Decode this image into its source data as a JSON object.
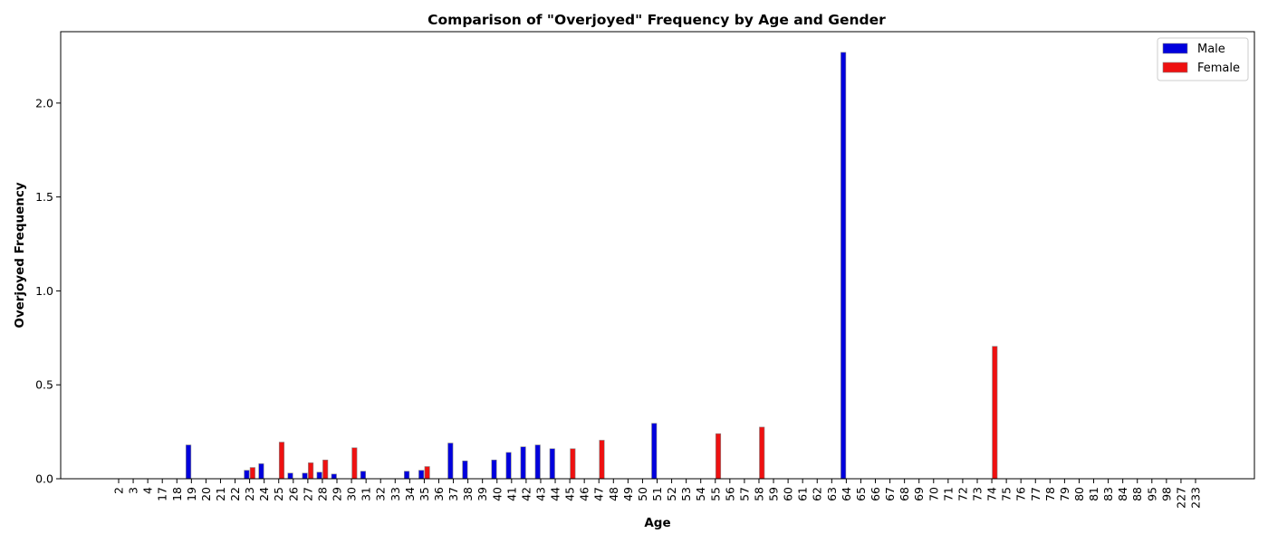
{
  "chart_data": {
    "type": "bar",
    "title": "Comparison of \"Overjoyed\" Frequency by Age and Gender",
    "xlabel": "Age",
    "ylabel": "Overjoyed Frequency",
    "ylim": [
      0,
      2.38
    ],
    "yticks": [
      "0.0",
      "0.5",
      "1.0",
      "1.5",
      "2.0"
    ],
    "legend_position": "top-right",
    "categories": [
      "2",
      "3",
      "4",
      "17",
      "18",
      "19",
      "20",
      "21",
      "22",
      "23",
      "24",
      "25",
      "26",
      "27",
      "28",
      "29",
      "30",
      "31",
      "32",
      "33",
      "34",
      "35",
      "36",
      "37",
      "38",
      "39",
      "40",
      "41",
      "42",
      "43",
      "44",
      "45",
      "46",
      "47",
      "48",
      "49",
      "50",
      "51",
      "52",
      "53",
      "54",
      "55",
      "56",
      "57",
      "58",
      "59",
      "60",
      "61",
      "62",
      "63",
      "64",
      "65",
      "66",
      "67",
      "68",
      "69",
      "70",
      "71",
      "72",
      "73",
      "74",
      "75",
      "76",
      "77",
      "78",
      "79",
      "80",
      "81",
      "83",
      "84",
      "88",
      "95",
      "98",
      "227",
      "233"
    ],
    "series": [
      {
        "name": "Male",
        "color": "#0000dd",
        "values": [
          0,
          0,
          0,
          0,
          0,
          0.18,
          0,
          0,
          0,
          0.045,
          0.08,
          0,
          0.03,
          0.03,
          0.035,
          0.025,
          0,
          0.04,
          0,
          0,
          0.04,
          0.045,
          0,
          0.19,
          0.095,
          0,
          0.1,
          0.14,
          0.17,
          0.18,
          0.16,
          0,
          0,
          0,
          0,
          0,
          0,
          0.295,
          0,
          0,
          0,
          0,
          0,
          0,
          0,
          0,
          0,
          0,
          0,
          0,
          2.27,
          0,
          0,
          0,
          0,
          0,
          0,
          0,
          0,
          0,
          0,
          0,
          0,
          0,
          0,
          0,
          0,
          0,
          0,
          0,
          0,
          0,
          0,
          0,
          0
        ]
      },
      {
        "name": "Female",
        "color": "#ee1111",
        "values": [
          0,
          0,
          0,
          0,
          0,
          0,
          0,
          0,
          0,
          0.06,
          0,
          0.195,
          0,
          0.085,
          0.1,
          0,
          0.165,
          0,
          0,
          0,
          0,
          0.065,
          0,
          0,
          0,
          0,
          0,
          0,
          0,
          0,
          0,
          0.16,
          0,
          0.205,
          0,
          0,
          0,
          0,
          0,
          0,
          0,
          0.24,
          0,
          0,
          0.275,
          0,
          0,
          0,
          0,
          0,
          0,
          0,
          0,
          0,
          0,
          0,
          0,
          0,
          0,
          0,
          0.705,
          0,
          0,
          0,
          0,
          0,
          0,
          0,
          0,
          0,
          0,
          0,
          0,
          0,
          0
        ]
      }
    ]
  }
}
